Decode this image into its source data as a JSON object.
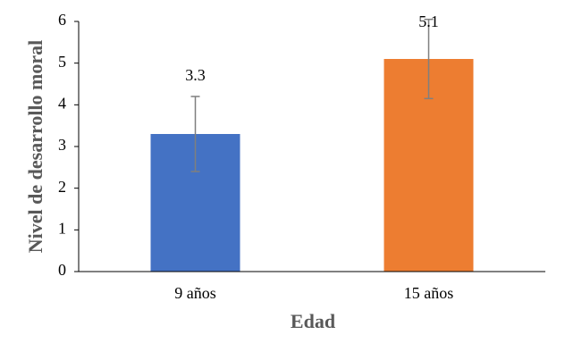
{
  "chart_data": {
    "type": "bar",
    "x_label": "Edad",
    "y_label": "Nivel de desarrollo moral",
    "categories": [
      "9 años",
      "15 años"
    ],
    "values": [
      3.3,
      5.1
    ],
    "errors": [
      0.9,
      0.95
    ],
    "colors": [
      "#4472c4",
      "#ed7d31"
    ],
    "error_color": "#7f7f7f",
    "ylim": [
      0,
      6
    ],
    "yticks": [
      0,
      1,
      2,
      3,
      4,
      5,
      6
    ],
    "grid": false
  }
}
